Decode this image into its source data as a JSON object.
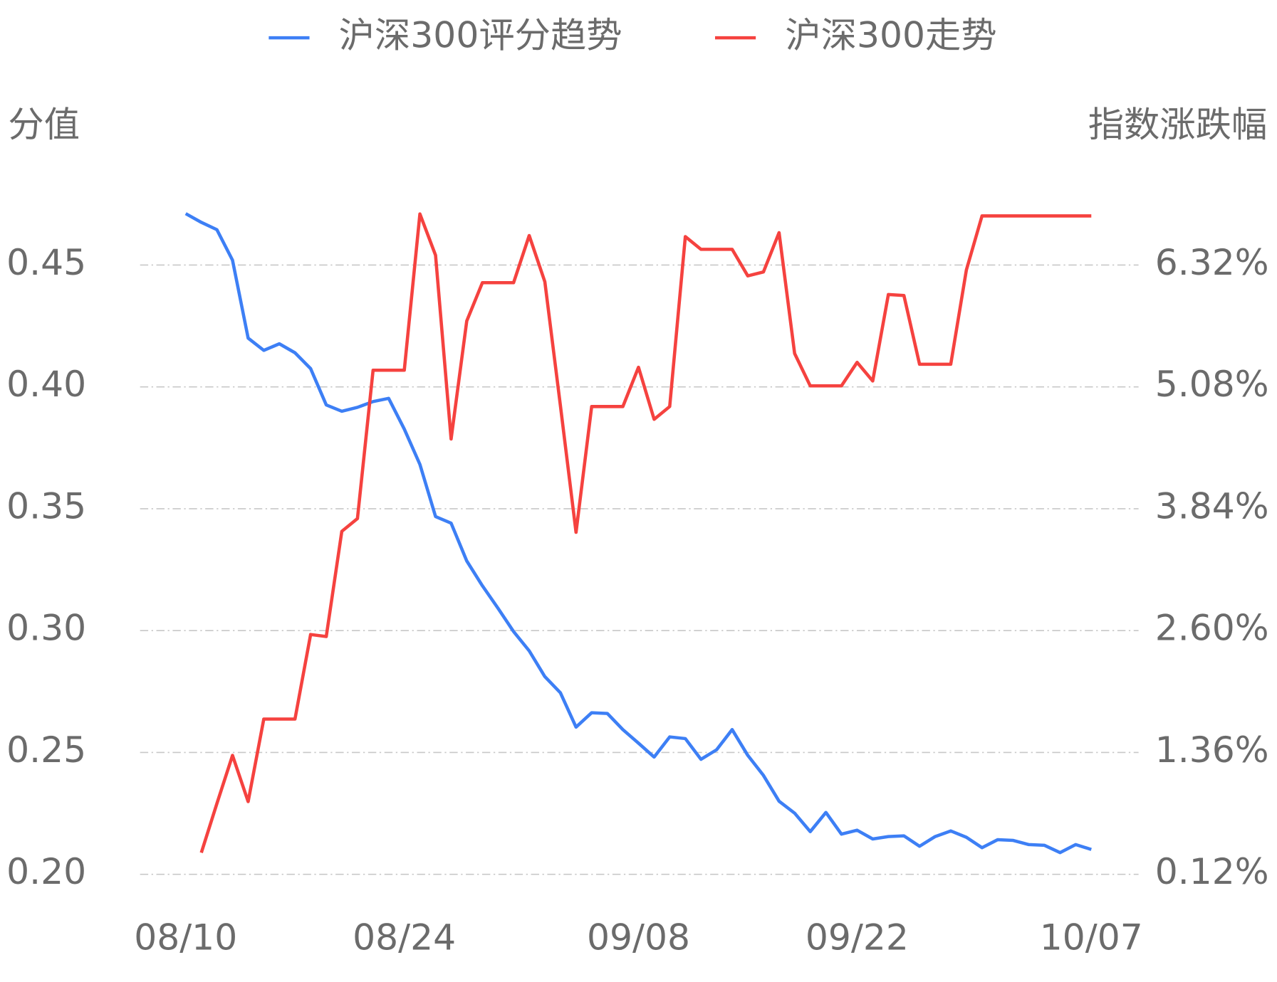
{
  "chart_data": {
    "type": "line",
    "y_label": "分值",
    "y2_label": "指数涨跌幅",
    "categories": [
      "08/10",
      null,
      null,
      null,
      null,
      null,
      null,
      null,
      null,
      null,
      null,
      null,
      null,
      null,
      "08/24",
      null,
      null,
      null,
      null,
      null,
      null,
      null,
      null,
      null,
      null,
      null,
      null,
      null,
      null,
      "09/08",
      null,
      null,
      null,
      null,
      null,
      null,
      null,
      null,
      null,
      null,
      null,
      null,
      null,
      "09/22",
      null,
      null,
      null,
      null,
      null,
      null,
      null,
      null,
      null,
      null,
      null,
      null,
      null,
      null,
      "10/07"
    ],
    "series": [
      {
        "name": "沪深300评分趋势",
        "color": "#3d7ff5",
        "axis": "y",
        "values": [
          0.4711,
          0.4675,
          0.4645,
          0.452,
          0.42,
          0.415,
          0.4177,
          0.414,
          0.4075,
          0.3926,
          0.39,
          0.3916,
          0.394,
          0.3953,
          0.3827,
          0.3682,
          0.3468,
          0.3441,
          0.3286,
          0.3184,
          0.3092,
          0.2996,
          0.2917,
          0.2811,
          0.2745,
          0.2604,
          0.2663,
          0.266,
          0.2594,
          0.2538,
          0.2481,
          0.2564,
          0.2557,
          0.2472,
          0.2511,
          0.2594,
          0.2488,
          0.2406,
          0.23,
          0.2251,
          0.2175,
          0.2254,
          0.2165,
          0.2181,
          0.2145,
          0.2155,
          0.2158,
          0.2115,
          0.2155,
          0.2178,
          0.2152,
          0.2109,
          0.2142,
          0.2139,
          0.2122,
          0.2119,
          0.2089,
          0.2122,
          0.2102
        ]
      },
      {
        "name": "沪深300走势",
        "color": "#f5423f",
        "axis": "y2",
        "values": [
          null,
          0.34,
          0.84,
          1.33,
          0.86,
          1.7,
          1.7,
          1.7,
          2.56,
          2.54,
          3.61,
          3.74,
          5.25,
          5.25,
          5.25,
          6.84,
          6.42,
          4.55,
          5.75,
          6.14,
          6.14,
          6.14,
          6.62,
          6.15,
          4.89,
          3.6,
          4.88,
          4.88,
          4.88,
          5.28,
          4.75,
          4.88,
          6.61,
          6.48,
          6.48,
          6.48,
          6.21,
          6.25,
          6.65,
          5.42,
          5.09,
          5.09,
          5.09,
          5.33,
          5.14,
          6.02,
          6.01,
          5.31,
          5.31,
          5.31,
          6.27,
          6.82,
          6.82,
          6.82,
          6.82,
          6.82,
          6.82,
          6.82,
          6.82
        ]
      }
    ],
    "ylim": [
      0.2,
      0.475
    ],
    "yticks": [
      {
        "value": 0.2,
        "label": "0.20"
      },
      {
        "value": 0.25,
        "label": "0.25"
      },
      {
        "value": 0.3,
        "label": "0.30"
      },
      {
        "value": 0.35,
        "label": "0.35"
      },
      {
        "value": 0.4,
        "label": "0.40"
      },
      {
        "value": 0.45,
        "label": "0.45"
      }
    ],
    "y2lim": [
      0.12,
      6.94
    ],
    "y2ticks": [
      {
        "value": 0.12,
        "label": "0.12%"
      },
      {
        "value": 1.36,
        "label": "1.36%"
      },
      {
        "value": 2.6,
        "label": "2.60%"
      },
      {
        "value": 3.84,
        "label": "3.84%"
      },
      {
        "value": 5.08,
        "label": "5.08%"
      },
      {
        "value": 6.32,
        "label": "6.32%"
      }
    ],
    "grid": true
  }
}
